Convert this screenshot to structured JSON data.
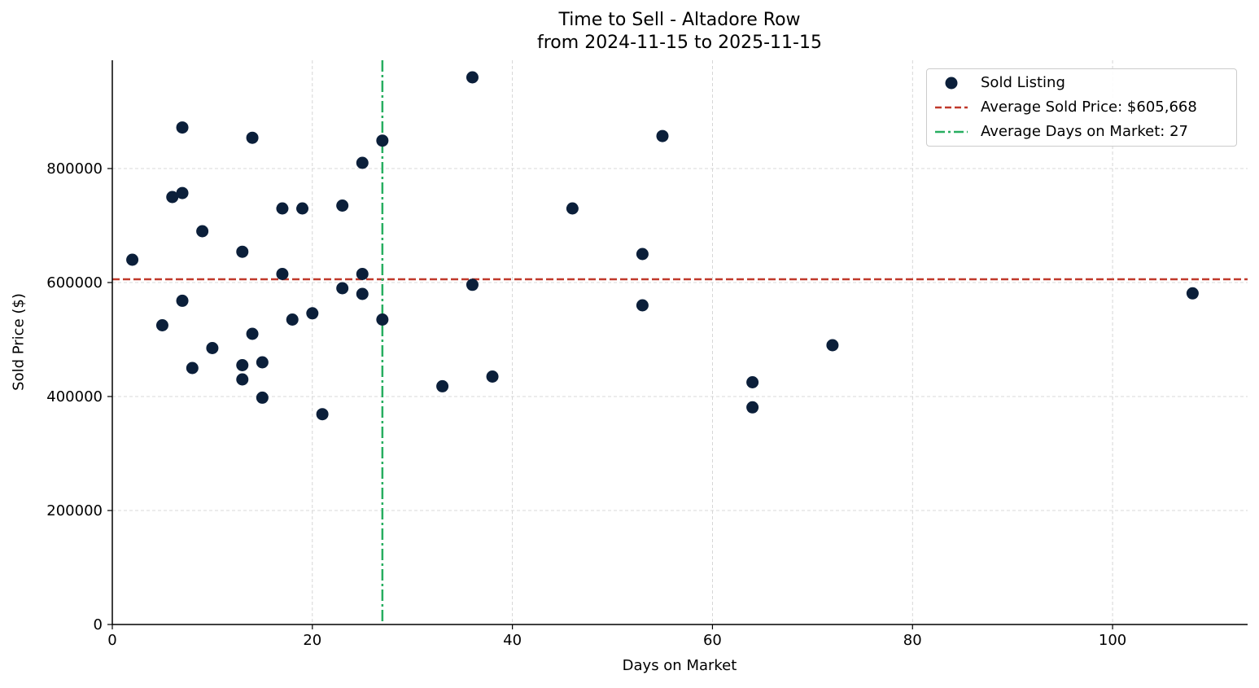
{
  "chart_data": {
    "type": "scatter",
    "title": "Time to Sell - Altadore Row",
    "subtitle": "from 2024-11-15 to 2025-11-15",
    "xlabel": "Days on Market",
    "ylabel": "Sold Price ($)",
    "xlim": [
      0,
      113.5
    ],
    "ylim": [
      0,
      990000
    ],
    "x_ticks": [
      0,
      20,
      40,
      60,
      80,
      100
    ],
    "y_ticks": [
      0,
      200000,
      400000,
      600000,
      800000
    ],
    "x_tick_labels": [
      "0",
      "20",
      "40",
      "60",
      "80",
      "100"
    ],
    "y_tick_labels": [
      "0",
      "200000",
      "400000",
      "600000",
      "800000"
    ],
    "grid": true,
    "legend_position": "top-right",
    "colors": {
      "points": "#0b1f3a",
      "avg_price": "#c0392b",
      "avg_days": "#27ae60",
      "grid": "#cccccc"
    },
    "series": [
      {
        "name": "Sold Listing",
        "x": [
          2,
          5,
          6,
          7,
          7,
          7,
          8,
          9,
          10,
          13,
          13,
          13,
          14,
          14,
          15,
          15,
          17,
          17,
          18,
          19,
          20,
          21,
          23,
          23,
          25,
          25,
          25,
          27,
          27,
          33,
          36,
          36,
          38,
          46,
          53,
          53,
          55,
          64,
          64,
          72,
          108
        ],
        "y": [
          640000,
          525000,
          750000,
          872000,
          757000,
          568000,
          450000,
          690000,
          485000,
          654000,
          455000,
          430000,
          854000,
          510000,
          460000,
          398000,
          730000,
          615000,
          535000,
          730000,
          546000,
          369000,
          735000,
          590000,
          810000,
          615000,
          580000,
          849000,
          535000,
          418000,
          960000,
          596000,
          435000,
          730000,
          650000,
          560000,
          857000,
          425000,
          381000,
          490000,
          581000
        ]
      }
    ],
    "reference_lines": {
      "avg_price": {
        "value": 605668,
        "label": "Average Sold Price: $605,668"
      },
      "avg_days": {
        "value": 27,
        "label": "Average Days on Market: 27"
      }
    },
    "legend": {
      "scatter_label": "Sold Listing",
      "avg_price_label": "Average Sold Price: $605,668",
      "avg_days_label": "Average Days on Market: 27"
    }
  }
}
